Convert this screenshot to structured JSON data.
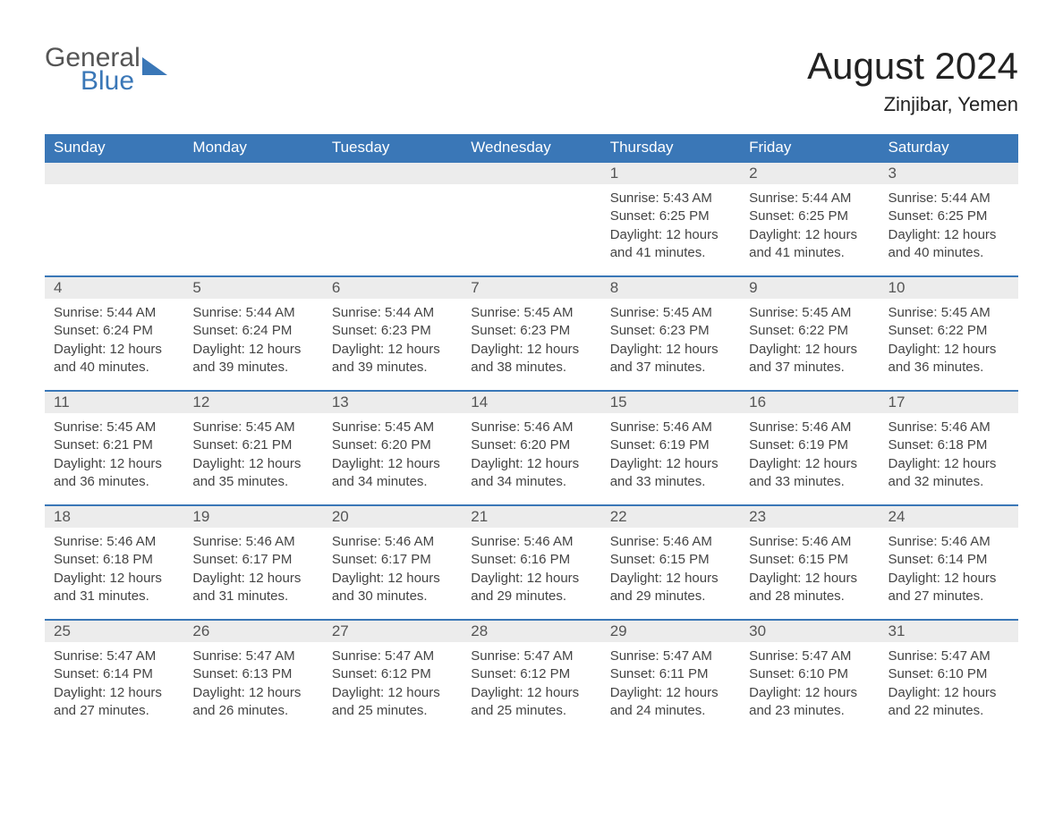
{
  "logo": {
    "line1": "General",
    "line2": "Blue"
  },
  "title": "August 2024",
  "location": "Zinjibar, Yemen",
  "colors": {
    "header_bg": "#3a77b7",
    "daynum_bg": "#ececec",
    "border_top": "#3a77b7",
    "text": "#444444",
    "title_text": "#222222"
  },
  "weekdays": [
    "Sunday",
    "Monday",
    "Tuesday",
    "Wednesday",
    "Thursday",
    "Friday",
    "Saturday"
  ],
  "weeks": [
    [
      {
        "n": "",
        "sunrise": "",
        "sunset": "",
        "daylight": ""
      },
      {
        "n": "",
        "sunrise": "",
        "sunset": "",
        "daylight": ""
      },
      {
        "n": "",
        "sunrise": "",
        "sunset": "",
        "daylight": ""
      },
      {
        "n": "",
        "sunrise": "",
        "sunset": "",
        "daylight": ""
      },
      {
        "n": "1",
        "sunrise": "Sunrise: 5:43 AM",
        "sunset": "Sunset: 6:25 PM",
        "daylight": "Daylight: 12 hours and 41 minutes."
      },
      {
        "n": "2",
        "sunrise": "Sunrise: 5:44 AM",
        "sunset": "Sunset: 6:25 PM",
        "daylight": "Daylight: 12 hours and 41 minutes."
      },
      {
        "n": "3",
        "sunrise": "Sunrise: 5:44 AM",
        "sunset": "Sunset: 6:25 PM",
        "daylight": "Daylight: 12 hours and 40 minutes."
      }
    ],
    [
      {
        "n": "4",
        "sunrise": "Sunrise: 5:44 AM",
        "sunset": "Sunset: 6:24 PM",
        "daylight": "Daylight: 12 hours and 40 minutes."
      },
      {
        "n": "5",
        "sunrise": "Sunrise: 5:44 AM",
        "sunset": "Sunset: 6:24 PM",
        "daylight": "Daylight: 12 hours and 39 minutes."
      },
      {
        "n": "6",
        "sunrise": "Sunrise: 5:44 AM",
        "sunset": "Sunset: 6:23 PM",
        "daylight": "Daylight: 12 hours and 39 minutes."
      },
      {
        "n": "7",
        "sunrise": "Sunrise: 5:45 AM",
        "sunset": "Sunset: 6:23 PM",
        "daylight": "Daylight: 12 hours and 38 minutes."
      },
      {
        "n": "8",
        "sunrise": "Sunrise: 5:45 AM",
        "sunset": "Sunset: 6:23 PM",
        "daylight": "Daylight: 12 hours and 37 minutes."
      },
      {
        "n": "9",
        "sunrise": "Sunrise: 5:45 AM",
        "sunset": "Sunset: 6:22 PM",
        "daylight": "Daylight: 12 hours and 37 minutes."
      },
      {
        "n": "10",
        "sunrise": "Sunrise: 5:45 AM",
        "sunset": "Sunset: 6:22 PM",
        "daylight": "Daylight: 12 hours and 36 minutes."
      }
    ],
    [
      {
        "n": "11",
        "sunrise": "Sunrise: 5:45 AM",
        "sunset": "Sunset: 6:21 PM",
        "daylight": "Daylight: 12 hours and 36 minutes."
      },
      {
        "n": "12",
        "sunrise": "Sunrise: 5:45 AM",
        "sunset": "Sunset: 6:21 PM",
        "daylight": "Daylight: 12 hours and 35 minutes."
      },
      {
        "n": "13",
        "sunrise": "Sunrise: 5:45 AM",
        "sunset": "Sunset: 6:20 PM",
        "daylight": "Daylight: 12 hours and 34 minutes."
      },
      {
        "n": "14",
        "sunrise": "Sunrise: 5:46 AM",
        "sunset": "Sunset: 6:20 PM",
        "daylight": "Daylight: 12 hours and 34 minutes."
      },
      {
        "n": "15",
        "sunrise": "Sunrise: 5:46 AM",
        "sunset": "Sunset: 6:19 PM",
        "daylight": "Daylight: 12 hours and 33 minutes."
      },
      {
        "n": "16",
        "sunrise": "Sunrise: 5:46 AM",
        "sunset": "Sunset: 6:19 PM",
        "daylight": "Daylight: 12 hours and 33 minutes."
      },
      {
        "n": "17",
        "sunrise": "Sunrise: 5:46 AM",
        "sunset": "Sunset: 6:18 PM",
        "daylight": "Daylight: 12 hours and 32 minutes."
      }
    ],
    [
      {
        "n": "18",
        "sunrise": "Sunrise: 5:46 AM",
        "sunset": "Sunset: 6:18 PM",
        "daylight": "Daylight: 12 hours and 31 minutes."
      },
      {
        "n": "19",
        "sunrise": "Sunrise: 5:46 AM",
        "sunset": "Sunset: 6:17 PM",
        "daylight": "Daylight: 12 hours and 31 minutes."
      },
      {
        "n": "20",
        "sunrise": "Sunrise: 5:46 AM",
        "sunset": "Sunset: 6:17 PM",
        "daylight": "Daylight: 12 hours and 30 minutes."
      },
      {
        "n": "21",
        "sunrise": "Sunrise: 5:46 AM",
        "sunset": "Sunset: 6:16 PM",
        "daylight": "Daylight: 12 hours and 29 minutes."
      },
      {
        "n": "22",
        "sunrise": "Sunrise: 5:46 AM",
        "sunset": "Sunset: 6:15 PM",
        "daylight": "Daylight: 12 hours and 29 minutes."
      },
      {
        "n": "23",
        "sunrise": "Sunrise: 5:46 AM",
        "sunset": "Sunset: 6:15 PM",
        "daylight": "Daylight: 12 hours and 28 minutes."
      },
      {
        "n": "24",
        "sunrise": "Sunrise: 5:46 AM",
        "sunset": "Sunset: 6:14 PM",
        "daylight": "Daylight: 12 hours and 27 minutes."
      }
    ],
    [
      {
        "n": "25",
        "sunrise": "Sunrise: 5:47 AM",
        "sunset": "Sunset: 6:14 PM",
        "daylight": "Daylight: 12 hours and 27 minutes."
      },
      {
        "n": "26",
        "sunrise": "Sunrise: 5:47 AM",
        "sunset": "Sunset: 6:13 PM",
        "daylight": "Daylight: 12 hours and 26 minutes."
      },
      {
        "n": "27",
        "sunrise": "Sunrise: 5:47 AM",
        "sunset": "Sunset: 6:12 PM",
        "daylight": "Daylight: 12 hours and 25 minutes."
      },
      {
        "n": "28",
        "sunrise": "Sunrise: 5:47 AM",
        "sunset": "Sunset: 6:12 PM",
        "daylight": "Daylight: 12 hours and 25 minutes."
      },
      {
        "n": "29",
        "sunrise": "Sunrise: 5:47 AM",
        "sunset": "Sunset: 6:11 PM",
        "daylight": "Daylight: 12 hours and 24 minutes."
      },
      {
        "n": "30",
        "sunrise": "Sunrise: 5:47 AM",
        "sunset": "Sunset: 6:10 PM",
        "daylight": "Daylight: 12 hours and 23 minutes."
      },
      {
        "n": "31",
        "sunrise": "Sunrise: 5:47 AM",
        "sunset": "Sunset: 6:10 PM",
        "daylight": "Daylight: 12 hours and 22 minutes."
      }
    ]
  ]
}
